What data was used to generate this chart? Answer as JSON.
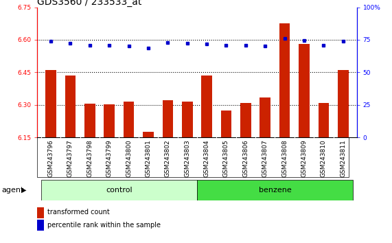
{
  "title": "GDS3560 / 233533_at",
  "categories": [
    "GSM243796",
    "GSM243797",
    "GSM243798",
    "GSM243799",
    "GSM243800",
    "GSM243801",
    "GSM243802",
    "GSM243803",
    "GSM243804",
    "GSM243805",
    "GSM243806",
    "GSM243807",
    "GSM243808",
    "GSM243809",
    "GSM243810",
    "GSM243811"
  ],
  "bar_values": [
    6.46,
    6.435,
    6.305,
    6.302,
    6.315,
    6.175,
    6.32,
    6.315,
    6.435,
    6.275,
    6.31,
    6.335,
    6.675,
    6.58,
    6.31,
    6.46
  ],
  "dot_values": [
    6.595,
    6.585,
    6.575,
    6.575,
    6.572,
    6.563,
    6.587,
    6.585,
    6.582,
    6.573,
    6.573,
    6.572,
    6.607,
    6.597,
    6.573,
    6.595
  ],
  "bar_color": "#cc2200",
  "dot_color": "#0000cc",
  "ylim_left": [
    6.15,
    6.75
  ],
  "ylim_right": [
    0,
    100
  ],
  "yticks_left": [
    6.15,
    6.3,
    6.45,
    6.6,
    6.75
  ],
  "yticks_right": [
    0,
    25,
    50,
    75,
    100
  ],
  "hlines": [
    6.3,
    6.45,
    6.6
  ],
  "control_n": 8,
  "benzene_n": 8,
  "control_color": "#ccffcc",
  "benzene_color": "#44dd44",
  "agent_label": "agent",
  "control_label": "control",
  "benzene_label": "benzene",
  "legend_bar_label": "transformed count",
  "legend_dot_label": "percentile rank within the sample",
  "bg_color": "#ffffff",
  "plot_bg_color": "#ffffff",
  "xtick_bg_color": "#dddddd",
  "title_fontsize": 10,
  "tick_fontsize": 6.5,
  "label_fontsize": 8
}
